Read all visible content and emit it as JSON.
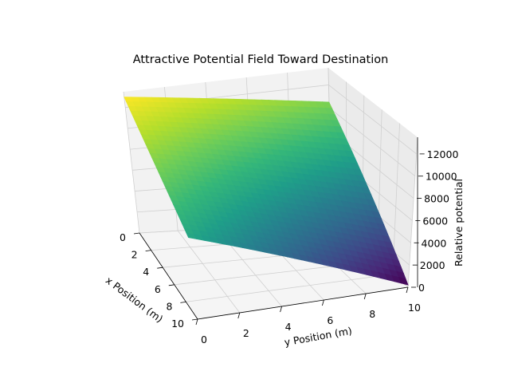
{
  "chart_data": {
    "type": "surface3d",
    "title": "Attractive Potential Field Toward Destination",
    "xlabel": "x Position (m)",
    "ylabel": "y Position (m)",
    "zlabel": "Relative potential",
    "xlim": [
      0,
      10
    ],
    "ylim": [
      0,
      10
    ],
    "zlim": [
      0,
      13500
    ],
    "xticks": [
      "0",
      "2",
      "4",
      "6",
      "8",
      "10"
    ],
    "yticks": [
      "0",
      "2",
      "4",
      "6",
      "8",
      "10"
    ],
    "zticks": [
      "0",
      "2000",
      "4000",
      "6000",
      "8000",
      "10000",
      "12000"
    ],
    "colormap": "viridis",
    "grid": true,
    "surface_corners": [
      {
        "x": 0,
        "y": 0,
        "z": 13000
      },
      {
        "x": 10,
        "y": 0,
        "z": 7800
      },
      {
        "x": 0,
        "y": 10,
        "z": 10500
      },
      {
        "x": 10,
        "y": 10,
        "z": 200
      }
    ]
  }
}
